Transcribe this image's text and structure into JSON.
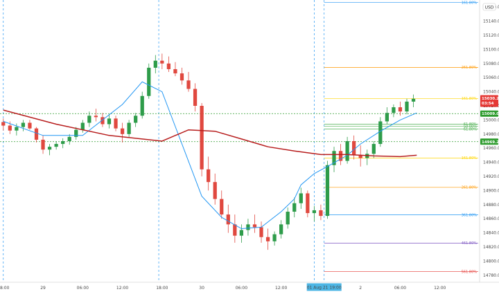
{
  "chart_data": {
    "type": "candlestick",
    "currency_label": "USD",
    "price_range": [
      14770,
      15170
    ],
    "y_ticks": [
      15160,
      15140,
      15120,
      15100,
      15080,
      15060,
      15040,
      15020,
      15000,
      14980,
      14960,
      14940,
      14920,
      14900,
      14880,
      14860,
      14840,
      14820,
      14800,
      14780
    ],
    "x_ticks": [
      {
        "t": 0,
        "label": "18:00"
      },
      {
        "t": 6,
        "label": "29"
      },
      {
        "t": 12,
        "label": "06:00"
      },
      {
        "t": 18,
        "label": "12:00"
      },
      {
        "t": 24,
        "label": "18:00"
      },
      {
        "t": 30,
        "label": "30"
      },
      {
        "t": 36,
        "label": "06:00"
      },
      {
        "t": 42,
        "label": "12:00"
      },
      {
        "t": 54,
        "label": "2"
      },
      {
        "t": 60,
        "label": "06:00"
      },
      {
        "t": 66,
        "label": "12:00"
      }
    ],
    "crosshair_time_label": "01 Aug 21  19:00",
    "current_price": {
      "value": 15030.25,
      "label": "15030.25",
      "countdown": "03:54",
      "color": "#e53935"
    },
    "horizontal_levels": [
      {
        "value": 15009.0,
        "label": "15009.00",
        "color": "#2e9c2e"
      },
      {
        "value": 14969.25,
        "label": "14969.25",
        "color": "#2e9c2e"
      }
    ],
    "fib_levels": [
      {
        "value": 15166.5,
        "label": "161.80%",
        "color": "#2196f3"
      },
      {
        "value": 15074.5,
        "label": "261.80%",
        "color": "#ff9800"
      },
      {
        "value": 15030.25,
        "label": "161.80%",
        "color": "#ffd600"
      },
      {
        "value": 14994.0,
        "label": "61.80%",
        "color": "#4caf50"
      },
      {
        "value": 14991.0,
        "label": "50.00%",
        "color": "#4caf50"
      },
      {
        "value": 14987.0,
        "label": "61.80%",
        "color": "#4caf50"
      },
      {
        "value": 14946.0,
        "label": "161.80%",
        "color": "#ffd600"
      },
      {
        "value": 14904.5,
        "label": "261.80%",
        "color": "#ff9800"
      },
      {
        "value": 14865.5,
        "label": "361.80%",
        "color": "#2196f3"
      },
      {
        "value": 14825.5,
        "label": "461.80%",
        "color": "#7e57c2"
      },
      {
        "value": 14785.0,
        "label": "561.80%",
        "color": "#e53935"
      }
    ],
    "session_separators": [
      0,
      23.5,
      47,
      48.5
    ],
    "candles": [
      [
        14997,
        15002,
        14985,
        14992
      ],
      [
        14992,
        14998,
        14980,
        14985
      ],
      [
        14985,
        14995,
        14978,
        14990
      ],
      [
        14990,
        15000,
        14984,
        14996
      ],
      [
        14996,
        15000,
        14986,
        14988
      ],
      [
        14988,
        14990,
        14968,
        14972
      ],
      [
        14972,
        14978,
        14952,
        14958
      ],
      [
        14958,
        14966,
        14950,
        14962
      ],
      [
        14962,
        14970,
        14958,
        14966
      ],
      [
        14966,
        14974,
        14960,
        14970
      ],
      [
        14970,
        14980,
        14965,
        14976
      ],
      [
        14976,
        14990,
        14972,
        14986
      ],
      [
        14986,
        15000,
        14982,
        14996
      ],
      [
        14996,
        15012,
        14990,
        15006
      ],
      [
        15006,
        15016,
        14998,
        15004
      ],
      [
        15004,
        15010,
        14990,
        14994
      ],
      [
        14994,
        15008,
        14988,
        15002
      ],
      [
        15002,
        15006,
        14984,
        14988
      ],
      [
        14988,
        14996,
        14968,
        14980
      ],
      [
        14980,
        15000,
        14976,
        14996
      ],
      [
        14996,
        15010,
        14990,
        15006
      ],
      [
        15006,
        15040,
        15002,
        15034
      ],
      [
        15034,
        15080,
        15030,
        15074
      ],
      [
        15074,
        15092,
        15066,
        15084
      ],
      [
        15084,
        15094,
        15072,
        15080
      ],
      [
        15080,
        15090,
        15068,
        15072
      ],
      [
        15072,
        15082,
        15062,
        15066
      ],
      [
        15066,
        15074,
        15050,
        15056
      ],
      [
        15056,
        15068,
        15040,
        15044
      ],
      [
        15044,
        15052,
        15012,
        15020
      ],
      [
        15020,
        15024,
        14920,
        14930
      ],
      [
        14930,
        14948,
        14900,
        14912
      ],
      [
        14912,
        14924,
        14880,
        14888
      ],
      [
        14888,
        14900,
        14860,
        14866
      ],
      [
        14866,
        14880,
        14840,
        14852
      ],
      [
        14852,
        14866,
        14826,
        14836
      ],
      [
        14836,
        14852,
        14826,
        14844
      ],
      [
        14844,
        14860,
        14836,
        14852
      ],
      [
        14852,
        14866,
        14840,
        14848
      ],
      [
        14848,
        14856,
        14826,
        14834
      ],
      [
        14834,
        14846,
        14816,
        14828
      ],
      [
        14828,
        14842,
        14822,
        14838
      ],
      [
        14838,
        14858,
        14832,
        14852
      ],
      [
        14852,
        14876,
        14846,
        14870
      ],
      [
        14870,
        14890,
        14862,
        14882
      ],
      [
        14882,
        14904,
        14874,
        14896
      ],
      [
        14896,
        14900,
        14862,
        14868
      ],
      [
        14868,
        14878,
        14856,
        14872
      ],
      [
        14872,
        14880,
        14858,
        14864
      ],
      [
        14864,
        14942,
        14860,
        14936
      ],
      [
        14936,
        14962,
        14926,
        14956
      ],
      [
        14956,
        14966,
        14936,
        14942
      ],
      [
        14942,
        14976,
        14938,
        14970
      ],
      [
        14970,
        14978,
        14944,
        14950
      ],
      [
        14950,
        14964,
        14934,
        14946
      ],
      [
        14946,
        14958,
        14936,
        14952
      ],
      [
        14952,
        14970,
        14946,
        14966
      ],
      [
        14966,
        15004,
        14962,
        14998
      ],
      [
        14998,
        15018,
        14994,
        15010
      ],
      [
        15010,
        15022,
        15004,
        15018
      ],
      [
        15018,
        15026,
        15006,
        15012
      ],
      [
        15012,
        15030,
        15008,
        15026
      ],
      [
        15026,
        15036,
        15018,
        15030
      ]
    ],
    "moving_averages": [
      {
        "name": "",
        "color": "#2196f3",
        "values": [
          [
            0,
            14998
          ],
          [
            6,
            14978
          ],
          [
            12,
            14978
          ],
          [
            18,
            15022
          ],
          [
            21,
            15054
          ],
          [
            24,
            15040
          ],
          [
            27,
            14966
          ],
          [
            30,
            14892
          ],
          [
            33,
            14862
          ],
          [
            36,
            14846
          ],
          [
            39,
            14848
          ],
          [
            42,
            14870
          ],
          [
            44,
            14888
          ],
          [
            45,
            14908
          ],
          [
            47,
            14924
          ],
          [
            49,
            14934
          ],
          [
            52,
            14950
          ],
          [
            54,
            14966
          ],
          [
            57,
            14984
          ],
          [
            60,
            15000
          ],
          [
            62.5,
            15010
          ]
        ]
      },
      {
        "name": "",
        "color": "#b71c1c",
        "values": [
          [
            0,
            15014
          ],
          [
            8,
            14994
          ],
          [
            16,
            14978
          ],
          [
            24,
            14970
          ],
          [
            28,
            14986
          ],
          [
            32,
            14984
          ],
          [
            36,
            14973
          ],
          [
            40,
            14962
          ],
          [
            44,
            14956
          ],
          [
            48,
            14951
          ],
          [
            52,
            14951
          ],
          [
            56,
            14949
          ],
          [
            60,
            14948
          ],
          [
            62.5,
            14950
          ]
        ]
      }
    ]
  }
}
